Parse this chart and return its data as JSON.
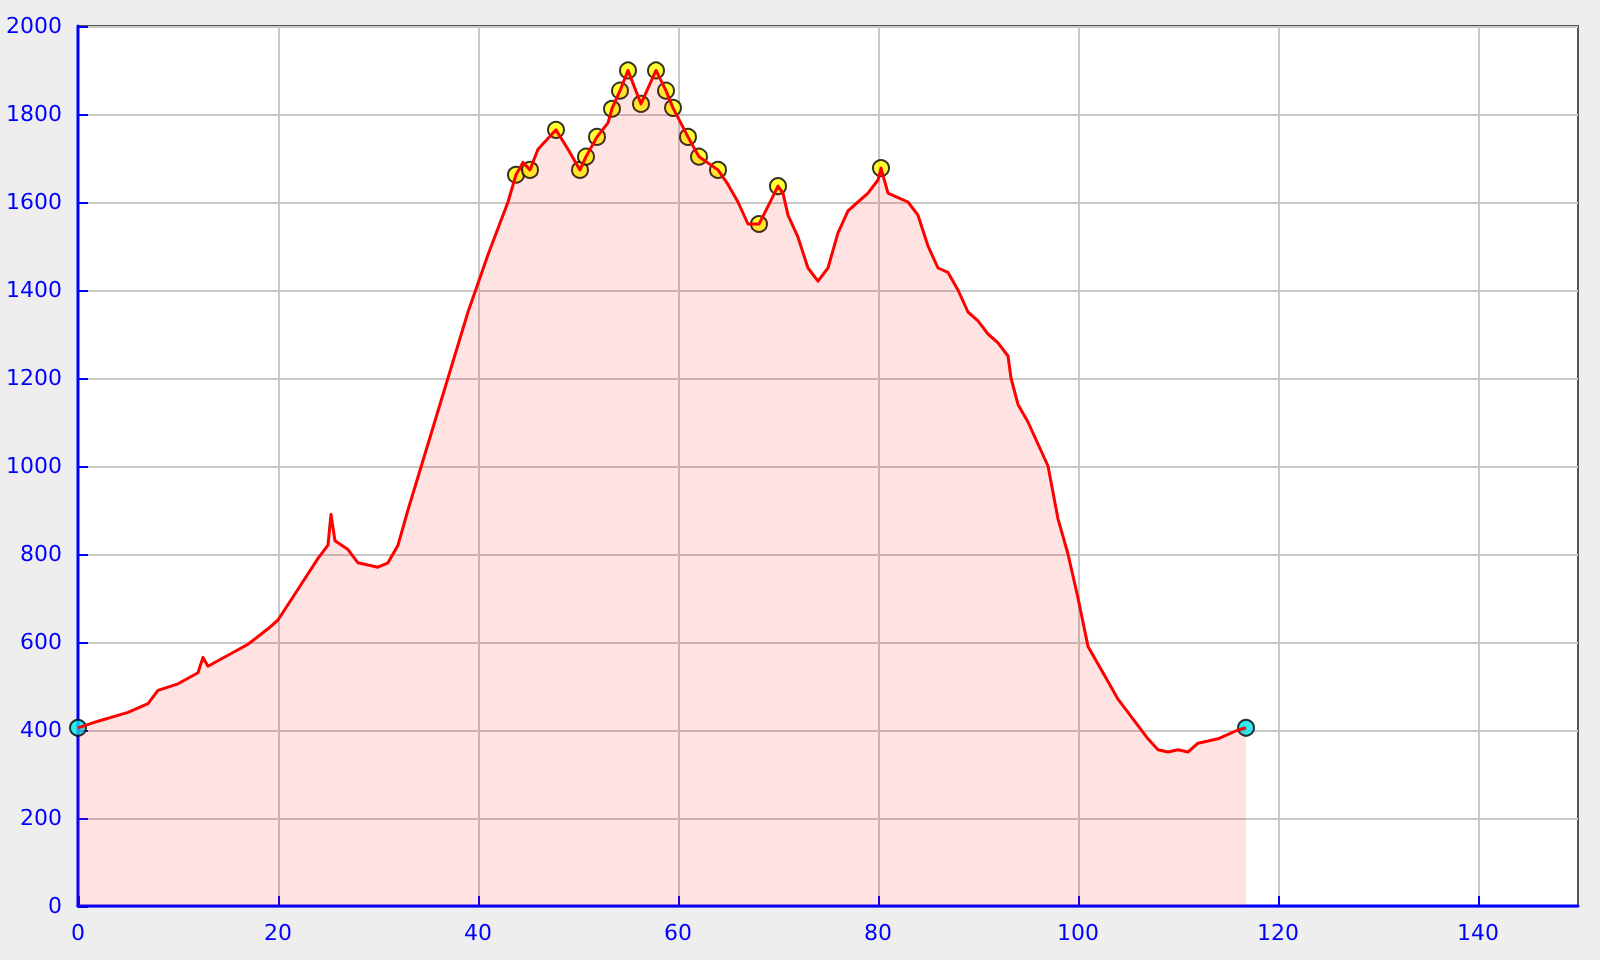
{
  "chart_data": {
    "type": "area",
    "xlim": [
      0,
      150
    ],
    "xticks": [
      0,
      20,
      40,
      60,
      80,
      100,
      120,
      140
    ],
    "ylim": [
      0,
      2000
    ],
    "yticks": [
      0,
      200,
      400,
      600,
      800,
      1000,
      1200,
      1400,
      1600,
      1800,
      2000
    ],
    "grid": true,
    "series": [
      {
        "color": "#ff0000",
        "marker": "none",
        "x": [
          0,
          2,
          5,
          7,
          8,
          10,
          12,
          12.5,
          13,
          15,
          17,
          19,
          20,
          22,
          24,
          25,
          25.3,
          25.7,
          27,
          28,
          30,
          31,
          32,
          33,
          35,
          37,
          39,
          41,
          43,
          43.8,
          44.5,
          45.2,
          46,
          47.8,
          49,
          50.2,
          50.8,
          51.9,
          53,
          53.4,
          54.2,
          55,
          56.3,
          57.8,
          58.8,
          59.5,
          61,
          62.1,
          64,
          65,
          66,
          67,
          68.1,
          69,
          70,
          70.5,
          71,
          72,
          73,
          74,
          75,
          76,
          77,
          78,
          79,
          80,
          80.3,
          81,
          82,
          83,
          84,
          85,
          86,
          87,
          88,
          89,
          90,
          91,
          92,
          93,
          93.3,
          94,
          95,
          96,
          97,
          98,
          99,
          100,
          101,
          102,
          103,
          104,
          105,
          106,
          107,
          108,
          109,
          110,
          111,
          112,
          114,
          115,
          116,
          116.8
        ],
        "values": [
          405,
          420,
          440,
          460,
          490,
          505,
          530,
          565,
          545,
          570,
          595,
          630,
          650,
          720,
          790,
          820,
          890,
          830,
          810,
          780,
          770,
          780,
          820,
          900,
          1050,
          1200,
          1350,
          1480,
          1600,
          1662,
          1690,
          1673,
          1720,
          1764,
          1720,
          1673,
          1703,
          1748,
          1780,
          1812,
          1853,
          1899,
          1823,
          1899,
          1853,
          1814,
          1748,
          1703,
          1673,
          1640,
          1600,
          1550,
          1550,
          1590,
          1636,
          1620,
          1570,
          1520,
          1450,
          1420,
          1450,
          1530,
          1580,
          1600,
          1620,
          1650,
          1677,
          1620,
          1610,
          1600,
          1570,
          1500,
          1450,
          1440,
          1400,
          1350,
          1330,
          1300,
          1280,
          1250,
          1200,
          1140,
          1100,
          1050,
          1000,
          880,
          800,
          700,
          590,
          550,
          510,
          470,
          440,
          410,
          380,
          355,
          350,
          355,
          350,
          370,
          380,
          390,
          400,
          405
        ]
      },
      {
        "type": "scatter",
        "marker": "circle",
        "color": "#ffff00",
        "x": [
          43.8,
          45.2,
          47.8,
          50.2,
          50.8,
          51.9,
          53.4,
          54.2,
          55,
          56.3,
          57.8,
          58.8,
          59.5,
          61,
          62.1,
          64,
          68.1,
          70,
          80.3
        ],
        "values": [
          1662,
          1673,
          1764,
          1673,
          1703,
          1748,
          1812,
          1853,
          1899,
          1823,
          1899,
          1853,
          1814,
          1748,
          1703,
          1673,
          1550,
          1636,
          1677
        ]
      },
      {
        "type": "scatter",
        "marker": "circle",
        "color": "#00e5ee",
        "x": [
          0,
          116.8
        ],
        "values": [
          405,
          405
        ]
      }
    ]
  }
}
